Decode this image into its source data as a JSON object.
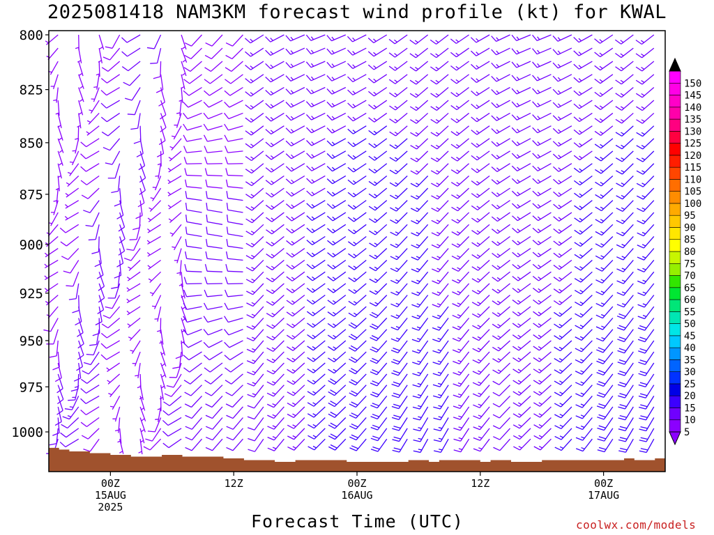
{
  "header": {
    "title": "2025081418 NAM3KM forecast wind profile (kt) for KWAL",
    "credit": "coolwx.com/models"
  },
  "chart_data": {
    "type": "wind-barb-profile",
    "title": "2025081418 NAM3KM forecast wind profile (kt) for KWAL",
    "xlabel": "Forecast Time (UTC)",
    "ylabel": "",
    "x_unit": "hours from 2025-08-14 18Z",
    "xlim": [
      0,
      60
    ],
    "y_unit": "hPa",
    "ylim": [
      800,
      1020
    ],
    "y_scale": "log-pressure",
    "y_ticks": [
      800,
      825,
      850,
      875,
      900,
      925,
      950,
      975,
      1000
    ],
    "x_ticks": [
      {
        "hours": 6,
        "labels": [
          "00Z",
          "15AUG",
          "2025"
        ]
      },
      {
        "hours": 18,
        "labels": [
          "12Z"
        ]
      },
      {
        "hours": 30,
        "labels": [
          "00Z",
          "16AUG"
        ]
      },
      {
        "hours": 42,
        "labels": [
          "12Z"
        ]
      },
      {
        "hours": 54,
        "labels": [
          "00Z",
          "17AUG"
        ]
      }
    ],
    "barb_levels_hPa": [
      800,
      806,
      812,
      818,
      824,
      830,
      836,
      842,
      848,
      854,
      860,
      866,
      872,
      878,
      884,
      890,
      896,
      902,
      908,
      914,
      920,
      926,
      932,
      938,
      944,
      950,
      956,
      962,
      968,
      974,
      980,
      986,
      992,
      998,
      1004,
      1010
    ],
    "wind_regimes_note_only_for_script": null,
    "colorbar": {
      "levels": [
        5,
        10,
        15,
        20,
        25,
        30,
        35,
        40,
        45,
        50,
        55,
        60,
        65,
        70,
        75,
        80,
        85,
        90,
        95,
        100,
        105,
        110,
        115,
        120,
        125,
        130,
        135,
        140,
        145,
        150
      ],
      "colors": [
        "#8b00ff",
        "#7000ff",
        "#3c00ff",
        "#0000e6",
        "#0032ff",
        "#0064ff",
        "#0096ff",
        "#00c8ff",
        "#00e6e6",
        "#00e6b4",
        "#00e678",
        "#00e632",
        "#32e600",
        "#96ef00",
        "#c8f500",
        "#ffff00",
        "#ffe600",
        "#ffc800",
        "#ffaa00",
        "#ff8c00",
        "#ff6e00",
        "#ff4600",
        "#ff1e00",
        "#ff0000",
        "#ff0040",
        "#ff0080",
        "#ff00aa",
        "#ff00c8",
        "#ff00e6",
        "#ff00ff"
      ]
    },
    "terrain_color": "#a0522d",
    "surface_pressure_hPa": [
      1009,
      1010,
      1011,
      1011,
      1012,
      1012,
      1013,
      1013,
      1014,
      1014,
      1014,
      1013,
      1013,
      1014,
      1014,
      1014,
      1014,
      1015,
      1015,
      1016,
      1016,
      1016,
      1017,
      1017,
      1016,
      1016,
      1016,
      1016,
      1016,
      1017,
      1017,
      1017,
      1017,
      1017,
      1017,
      1016,
      1016,
      1017,
      1016,
      1016,
      1016,
      1016,
      1017,
      1016,
      1016,
      1017,
      1017,
      1017,
      1016,
      1016,
      1016,
      1016,
      1016,
      1016,
      1016,
      1016,
      1015,
      1016,
      1016,
      1015,
      1015
    ],
    "series": []
  }
}
